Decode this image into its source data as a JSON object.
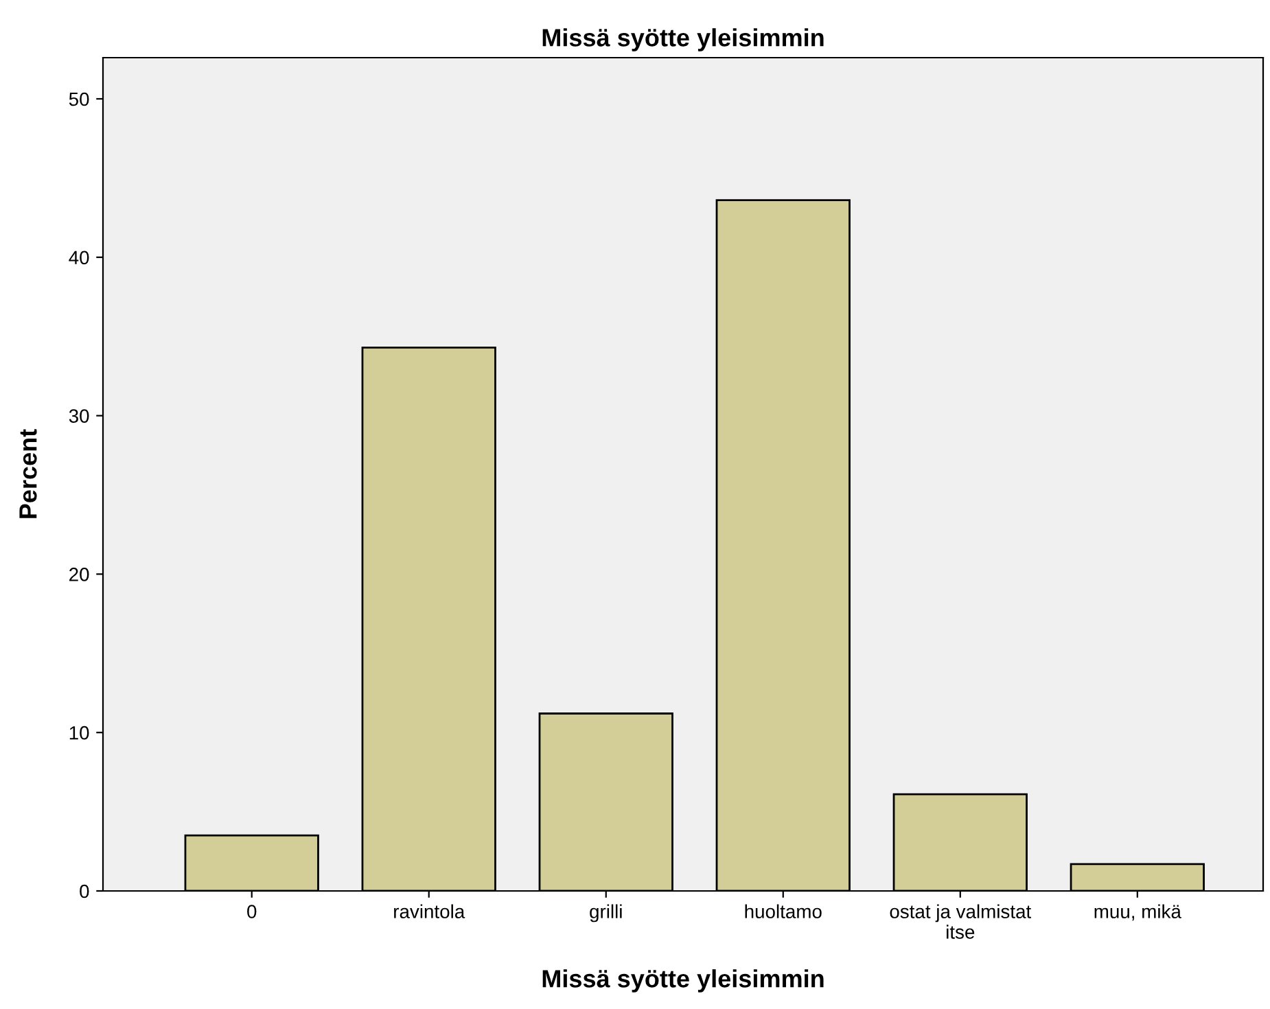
{
  "chart_data": {
    "type": "bar",
    "title": "Missä syötte yleisimmin",
    "xlabel": "Missä syötte yleisimmin",
    "ylabel": "Percent",
    "categories": [
      "0",
      "ravintola",
      "grilli",
      "huoltamo",
      "ostat ja valmistat\nitse",
      "muu, mikä"
    ],
    "values": [
      3.5,
      34.3,
      11.2,
      43.6,
      6.1,
      1.7
    ],
    "color": "#d3ce97",
    "ylim": [
      0,
      52.6
    ],
    "yticks": [
      0,
      10,
      20,
      30,
      40,
      50
    ],
    "grid": false,
    "legend": false
  }
}
